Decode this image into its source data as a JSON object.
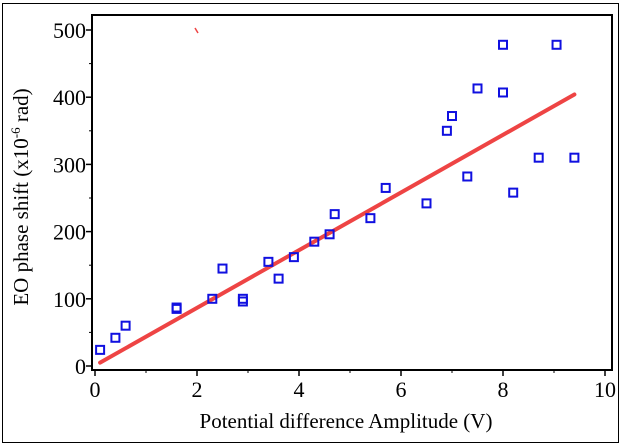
{
  "chart_data": {
    "type": "scatter",
    "xlabel": "Potential difference Amplitude (V)",
    "ylabel_parts": {
      "before": "EO phase shift (x10",
      "sup": "-6",
      "after": " rad)"
    },
    "xlim": [
      0,
      10
    ],
    "ylim": [
      0,
      500
    ],
    "x_ticks": [
      0,
      2,
      4,
      6,
      8,
      10
    ],
    "y_ticks": [
      0,
      100,
      200,
      300,
      400,
      500
    ],
    "x_tick_labels": [
      "0",
      "2",
      "4",
      "6",
      "8",
      "10"
    ],
    "y_tick_labels": [
      "0",
      "100",
      "200",
      "300",
      "400",
      "500"
    ],
    "grid": false,
    "colors": {
      "points": "#1010e0",
      "fit": "#ee4444",
      "axes": "#000000"
    },
    "series": [
      {
        "kind": "points",
        "marker": "open-square",
        "x": [
          0.1,
          0.4,
          0.6,
          1.6,
          1.6,
          2.3,
          2.5,
          2.9,
          2.9,
          3.4,
          3.6,
          3.9,
          4.3,
          4.6,
          4.7,
          5.4,
          5.7,
          6.5,
          6.9,
          7.0,
          7.3,
          7.5,
          8.0,
          8.0,
          8.2,
          8.7,
          9.05,
          9.4
        ],
        "y": [
          24,
          42,
          60,
          85,
          87,
          100,
          145,
          100,
          96,
          155,
          130,
          162,
          185,
          196,
          226,
          220,
          265,
          242,
          350,
          372,
          282,
          413,
          407,
          478,
          258,
          310,
          478,
          310
        ]
      },
      {
        "kind": "line",
        "style": "fit",
        "x": [
          0.1,
          9.4
        ],
        "y": [
          5,
          404
        ]
      }
    ]
  }
}
